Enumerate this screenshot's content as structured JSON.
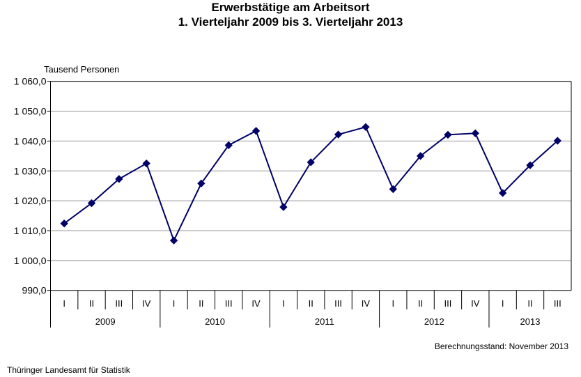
{
  "chart_data": {
    "type": "line",
    "title": "Erwerbstätige am Arbeitsort",
    "subtitle": "1. Vierteljahr 2009 bis 3. Vierteljahr 2013",
    "ylabel": "Tausend Personen",
    "ylim": [
      990,
      1060
    ],
    "yticks": [
      "990,0",
      "1 000,0",
      "1 010,0",
      "1 020,0",
      "1 030,0",
      "1 040,0",
      "1 050,0",
      "1 060,0"
    ],
    "grid": true,
    "years": [
      "2009",
      "2010",
      "2011",
      "2012",
      "2013"
    ],
    "categories": [
      "I",
      "II",
      "III",
      "IV",
      "I",
      "II",
      "III",
      "IV",
      "I",
      "II",
      "III",
      "IV",
      "I",
      "II",
      "III",
      "IV",
      "I",
      "II",
      "III"
    ],
    "values": [
      1012.4,
      1019.2,
      1027.3,
      1032.5,
      1006.7,
      1025.8,
      1038.6,
      1043.4,
      1017.9,
      1032.9,
      1042.2,
      1044.7,
      1023.9,
      1035.0,
      1042.1,
      1042.6,
      1022.6,
      1031.9,
      1040.1
    ],
    "line_color": "#000066"
  },
  "footer": {
    "source": "Thüringer Landesamt für Statistik",
    "stand": "Berechnungsstand: November  2013"
  }
}
